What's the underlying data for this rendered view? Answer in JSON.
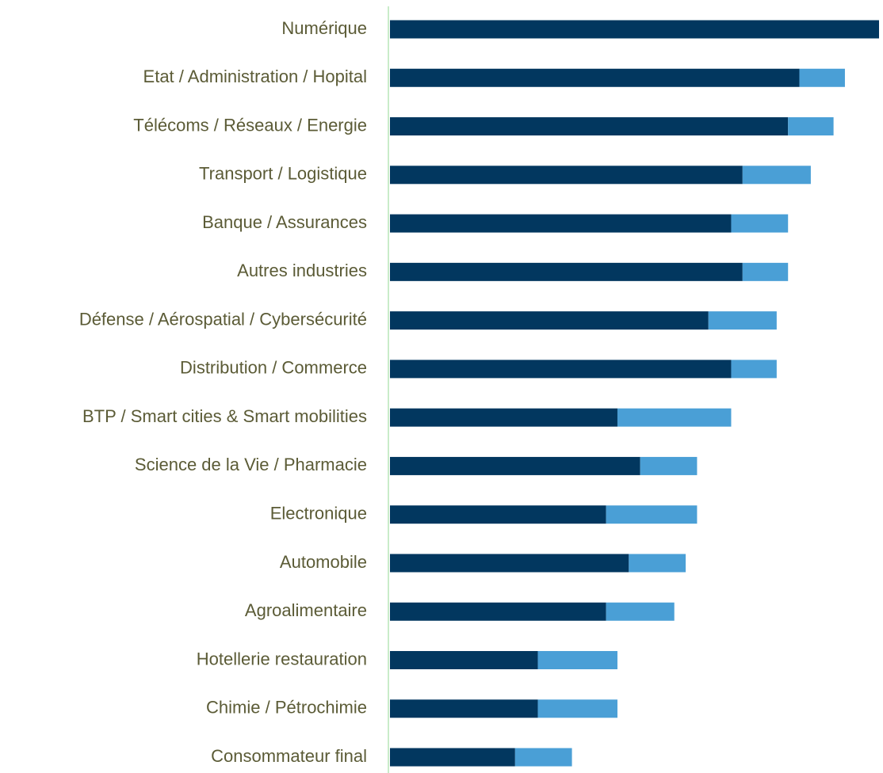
{
  "chart_data": {
    "type": "stacked_barh",
    "categories": [
      "Numérique",
      "Etat / Administration / Hopital",
      "Télécoms / Réseaux / Energie",
      "Transport / Logistique",
      "Banque / Assurances",
      "Autres industries",
      "Défense / Aérospatial / Cybersécurité",
      "Distribution / Commerce",
      "BTP / Smart cities & Smart mobilities",
      "Science de la Vie / Pharmacie",
      "Electronique",
      "Automobile",
      "Agroalimentaire",
      "Hotellerie restauration",
      "Chimie / Pétrochimie",
      "Consommateur final"
    ],
    "series": [
      {
        "color": "#02375f",
        "values": [
          43,
          36,
          35,
          31,
          30,
          31,
          28,
          30,
          20,
          22,
          19,
          21,
          19,
          13,
          13,
          11
        ]
      },
      {
        "color": "#4a9fd6",
        "values": [
          0,
          4,
          4,
          6,
          5,
          4,
          6,
          4,
          10,
          5,
          8,
          5,
          6,
          7,
          7,
          5
        ]
      }
    ],
    "xlim": [
      0,
      43
    ]
  }
}
